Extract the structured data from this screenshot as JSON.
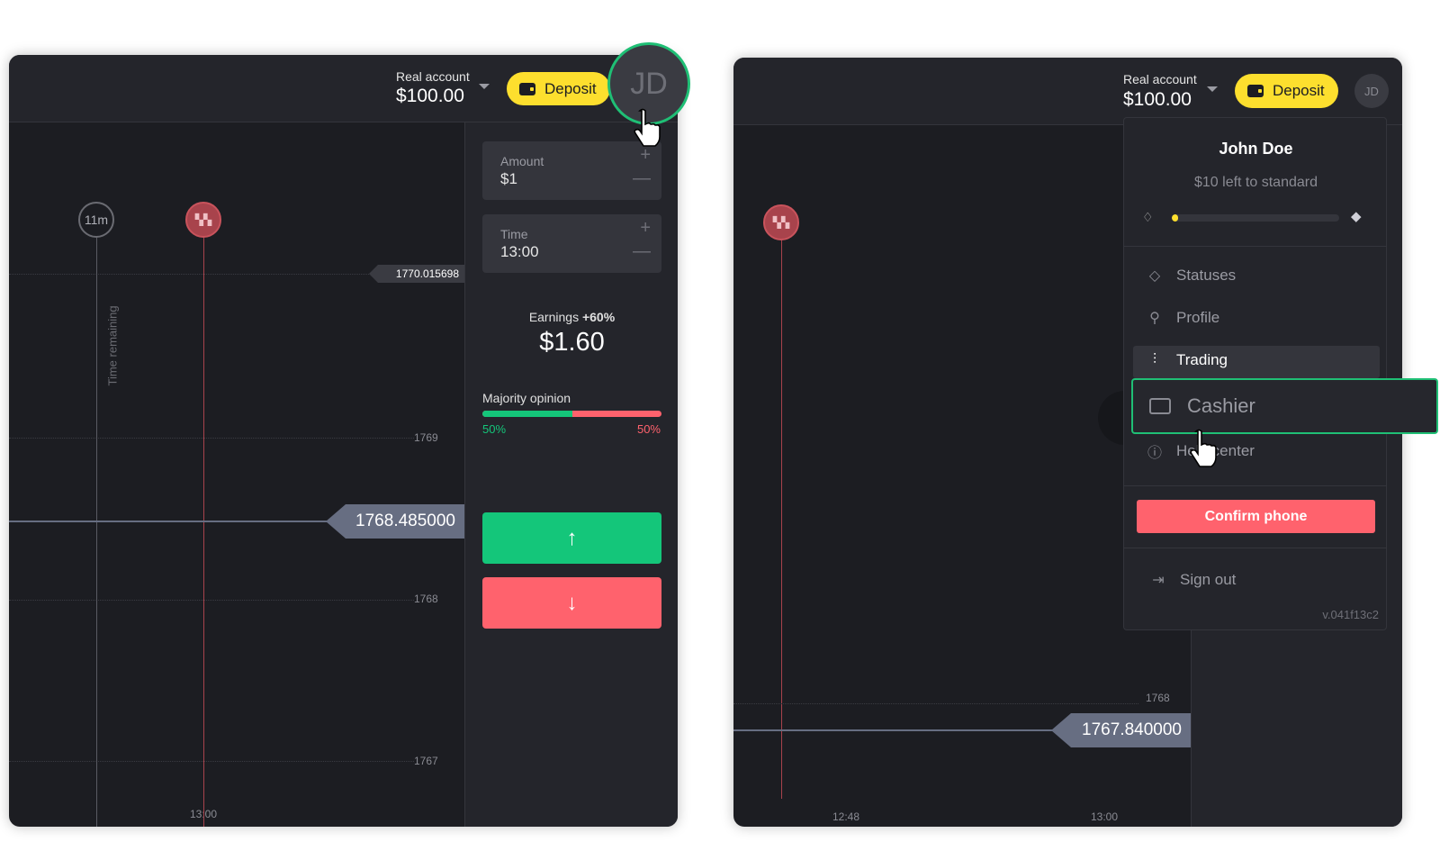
{
  "left": {
    "header": {
      "account_label": "Real account",
      "balance": "$100.00",
      "deposit_label": "Deposit",
      "avatar_initials": "JD"
    },
    "sidebar": {
      "amount": {
        "label": "Amount",
        "value": "$1"
      },
      "time": {
        "label": "Time",
        "value": "13:00"
      },
      "earnings_label": "Earnings",
      "earnings_pct": "+60%",
      "earnings_value": "$1.60",
      "majority_label": "Majority opinion",
      "majority_up": "50%",
      "majority_down": "50%",
      "majority_up_fraction": 0.5
    },
    "chart": {
      "timer_badge": "11m",
      "time_remaining_label": "Time remaining",
      "strike_price": "1770.015698",
      "current_price": "1768.485000",
      "y_ticks": [
        "1769",
        "1768",
        "1767"
      ],
      "x_ticks": [
        "13:00"
      ]
    }
  },
  "right": {
    "header": {
      "account_label": "Real account",
      "balance": "$100.00",
      "deposit_label": "Deposit",
      "avatar_initials": "JD"
    },
    "chart": {
      "current_price": "1767.840000",
      "y_ticks": [
        "1768"
      ],
      "x_ticks": [
        "12:48",
        "13:00"
      ]
    },
    "menu": {
      "user_name": "John Doe",
      "status_progress_text": "$10 left to standard",
      "status_progress": 0.04,
      "items": [
        {
          "label": "Statuses",
          "icon": "diamond-icon"
        },
        {
          "label": "Profile",
          "icon": "user-icon"
        },
        {
          "label": "Trading",
          "icon": "trading-icon"
        },
        {
          "label": "Cashier",
          "icon": "wallet-icon"
        },
        {
          "label": "Help center",
          "icon": "info-icon"
        }
      ],
      "confirm_phone_label": "Confirm phone",
      "sign_out_label": "Sign out",
      "version": "v.041f13c2"
    }
  },
  "colors": {
    "accent_yellow": "#fddf2e",
    "up_green": "#14c67a",
    "down_red": "#ff626d",
    "highlight_green": "#1fbf75"
  }
}
